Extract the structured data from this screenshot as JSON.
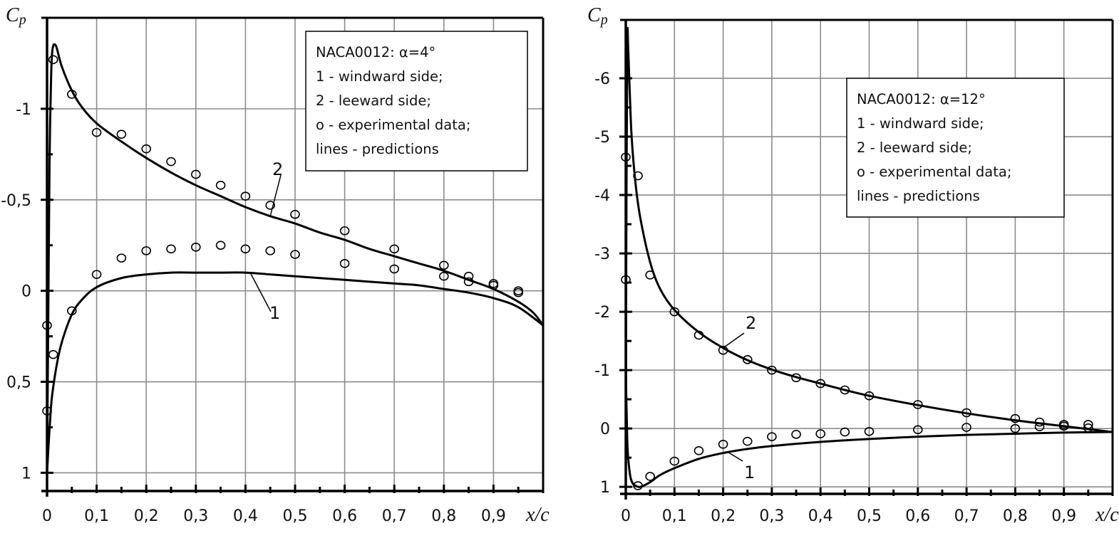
{
  "chart_data": [
    {
      "type": "line",
      "title": "NACA0012: α=4°",
      "xlabel": "x/c",
      "ylabel": "Cp",
      "xlim": [
        0,
        1.0
      ],
      "ylim": [
        -1.5,
        1.1
      ],
      "y_inverted": true,
      "grid": true,
      "x_ticks": [
        0,
        0.1,
        0.2,
        0.3,
        0.4,
        0.5,
        0.6,
        0.7,
        0.8,
        0.9
      ],
      "x_tick_labels": [
        "0",
        "0,1",
        "0,2",
        "0,3",
        "0,4",
        "0,5",
        "0,6",
        "0,7",
        "0,8",
        "0,9"
      ],
      "y_ticks": [
        -1,
        -0.5,
        0,
        0.5,
        1
      ],
      "y_tick_labels": [
        "-1",
        "-0,5",
        "0",
        "0,5",
        "1"
      ],
      "legend": {
        "placement": "top-right",
        "lines": [
          "NACA0012: α=4°",
          "1 - windward side;",
          "2 - leeward side;",
          "o - experimental data;",
          "lines - predictions"
        ]
      },
      "series": [
        {
          "name": "2 - leeward side (prediction)",
          "label": "2",
          "kind": "line",
          "x": [
            0.0,
            0.002,
            0.005,
            0.008,
            0.01,
            0.013,
            0.017,
            0.02,
            0.03,
            0.05,
            0.07,
            0.1,
            0.15,
            0.2,
            0.25,
            0.3,
            0.35,
            0.4,
            0.45,
            0.5,
            0.55,
            0.6,
            0.65,
            0.7,
            0.75,
            0.8,
            0.85,
            0.9,
            0.95,
            0.98,
            1.0
          ],
          "y": [
            1.0,
            0.3,
            -0.7,
            -1.15,
            -1.3,
            -1.35,
            -1.35,
            -1.33,
            -1.23,
            -1.1,
            -1.01,
            -0.92,
            -0.82,
            -0.73,
            -0.65,
            -0.58,
            -0.52,
            -0.46,
            -0.41,
            -0.37,
            -0.32,
            -0.28,
            -0.23,
            -0.19,
            -0.15,
            -0.11,
            -0.06,
            -0.01,
            0.06,
            0.12,
            0.19
          ]
        },
        {
          "name": "1 - windward side (prediction)",
          "label": "1",
          "kind": "line",
          "x": [
            0.0,
            0.003,
            0.006,
            0.01,
            0.02,
            0.03,
            0.05,
            0.07,
            0.1,
            0.15,
            0.2,
            0.25,
            0.3,
            0.35,
            0.4,
            0.45,
            0.5,
            0.55,
            0.6,
            0.65,
            0.7,
            0.75,
            0.8,
            0.85,
            0.9,
            0.95,
            1.0
          ],
          "y": [
            1.0,
            0.85,
            0.72,
            0.58,
            0.4,
            0.28,
            0.13,
            0.05,
            -0.02,
            -0.07,
            -0.09,
            -0.1,
            -0.1,
            -0.1,
            -0.1,
            -0.09,
            -0.08,
            -0.07,
            -0.06,
            -0.05,
            -0.04,
            -0.03,
            -0.01,
            0.01,
            0.04,
            0.09,
            0.19
          ]
        },
        {
          "name": "2 - leeward side (experimental)",
          "kind": "scatter",
          "x": [
            0.0125,
            0.05,
            0.1,
            0.15,
            0.2,
            0.25,
            0.3,
            0.35,
            0.4,
            0.45,
            0.5,
            0.6,
            0.7,
            0.8,
            0.85,
            0.9,
            0.95
          ],
          "y": [
            -1.27,
            -1.08,
            -0.87,
            -0.86,
            -0.78,
            -0.71,
            -0.64,
            -0.58,
            -0.52,
            -0.47,
            -0.42,
            -0.33,
            -0.23,
            -0.14,
            -0.08,
            -0.04,
            0.0
          ]
        },
        {
          "name": "1 - windward side (experimental)",
          "kind": "scatter",
          "x": [
            0.0,
            0.0125,
            0.05,
            0.1,
            0.15,
            0.2,
            0.25,
            0.3,
            0.35,
            0.4,
            0.45,
            0.5,
            0.6,
            0.7,
            0.8,
            0.85,
            0.9,
            0.95,
            0.0
          ],
          "y": [
            0.19,
            0.35,
            0.11,
            -0.09,
            -0.18,
            -0.22,
            -0.23,
            -0.24,
            -0.25,
            -0.23,
            -0.22,
            -0.2,
            -0.15,
            -0.12,
            -0.08,
            -0.05,
            -0.03,
            0.01,
            0.66
          ]
        }
      ]
    },
    {
      "type": "line",
      "title": "NACA0012: α=12°",
      "xlabel": "x/c",
      "ylabel": "Cp",
      "xlim": [
        0,
        1.0
      ],
      "ylim": [
        -7.0,
        1.12
      ],
      "y_inverted": true,
      "grid": true,
      "x_ticks": [
        0,
        0.1,
        0.2,
        0.3,
        0.4,
        0.5,
        0.6,
        0.7,
        0.8,
        0.9
      ],
      "x_tick_labels": [
        "0",
        "0,1",
        "0,2",
        "0,3",
        "0,4",
        "0,5",
        "0,6",
        "0,7",
        "0,8",
        "0,9"
      ],
      "y_ticks": [
        -6,
        -5,
        -4,
        -3,
        -2,
        -1,
        0,
        1
      ],
      "y_tick_labels": [
        "-6",
        "-5",
        "-4",
        "-3",
        "-2",
        "-1",
        "0",
        "1"
      ],
      "legend": {
        "placement": "top-right",
        "lines": [
          "NACA0012: α=12°",
          "1 - windward side;",
          "2 - leeward side;",
          "o - experimental data;",
          "lines - predictions"
        ]
      },
      "series": [
        {
          "name": "2 - leeward side (prediction)",
          "label": "2",
          "kind": "line",
          "x": [
            0.0,
            0.001,
            0.003,
            0.005,
            0.008,
            0.012,
            0.02,
            0.03,
            0.05,
            0.07,
            0.1,
            0.15,
            0.2,
            0.25,
            0.3,
            0.35,
            0.4,
            0.45,
            0.5,
            0.6,
            0.7,
            0.8,
            0.9,
            0.95,
            1.0
          ],
          "y": [
            1.0,
            -3.0,
            -6.6,
            -6.5,
            -5.8,
            -5.0,
            -4.2,
            -3.6,
            -2.85,
            -2.4,
            -2.03,
            -1.65,
            -1.38,
            -1.17,
            -1.01,
            -0.88,
            -0.77,
            -0.66,
            -0.56,
            -0.4,
            -0.26,
            -0.14,
            -0.04,
            0.01,
            0.06
          ]
        },
        {
          "name": "1 - windward side (prediction)",
          "label": "1",
          "kind": "line",
          "x": [
            0.0,
            0.003,
            0.006,
            0.01,
            0.015,
            0.02,
            0.03,
            0.05,
            0.07,
            0.1,
            0.15,
            0.2,
            0.25,
            0.3,
            0.4,
            0.5,
            0.6,
            0.7,
            0.8,
            0.9,
            1.0
          ],
          "y": [
            -1.0,
            0.2,
            0.6,
            0.85,
            0.95,
            0.98,
            1.0,
            0.92,
            0.8,
            0.68,
            0.52,
            0.42,
            0.35,
            0.3,
            0.23,
            0.18,
            0.14,
            0.11,
            0.09,
            0.07,
            0.06
          ]
        },
        {
          "name": "2 - leeward side (experimental)",
          "kind": "scatter",
          "x": [
            0.0,
            0.025,
            0.05,
            0.1,
            0.15,
            0.2,
            0.25,
            0.3,
            0.35,
            0.4,
            0.45,
            0.5,
            0.6,
            0.7,
            0.8,
            0.85,
            0.9,
            0.95
          ],
          "y": [
            -4.65,
            -4.33,
            -2.63,
            -2.0,
            -1.6,
            -1.34,
            -1.18,
            -1.0,
            -0.87,
            -0.77,
            -0.66,
            -0.56,
            -0.41,
            -0.27,
            -0.17,
            -0.11,
            -0.07,
            -0.07
          ]
        },
        {
          "name": "1 - windward side (experimental)",
          "kind": "scatter",
          "x": [
            0.0,
            0.025,
            0.05,
            0.1,
            0.15,
            0.2,
            0.25,
            0.3,
            0.35,
            0.4,
            0.45,
            0.5,
            0.6,
            0.7,
            0.8,
            0.85,
            0.9,
            0.95
          ],
          "y": [
            -2.55,
            0.98,
            0.82,
            0.56,
            0.38,
            0.27,
            0.22,
            0.14,
            0.1,
            0.09,
            0.06,
            0.05,
            0.02,
            -0.02,
            0.0,
            -0.03,
            -0.04,
            -0.01
          ]
        }
      ]
    }
  ]
}
